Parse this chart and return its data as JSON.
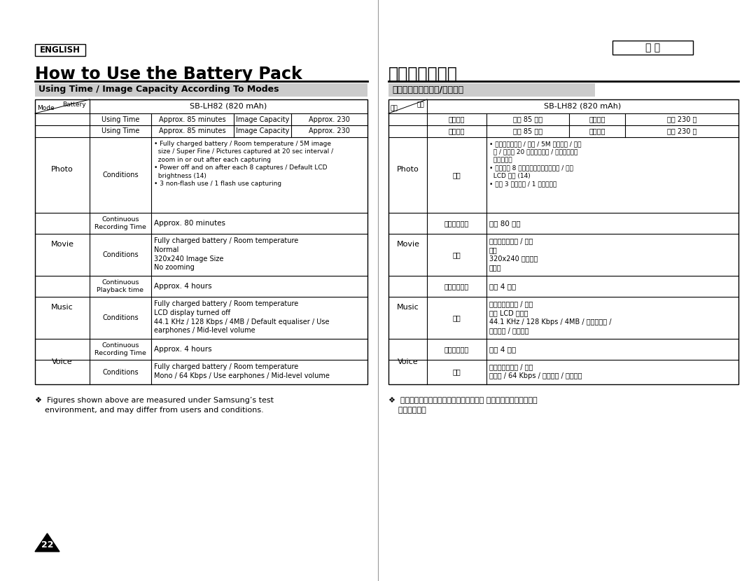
{
  "bg_color": "#ffffff",
  "english_label": "ENGLISH",
  "taiwan_label": "臺 灣",
  "title_en": "How to Use the Battery Pack",
  "title_zh": "如何使用電池組",
  "section_en": "Using Time / Image Capacity According To Modes",
  "section_zh": "根據模式的使用時間/影像容量",
  "battery_header_en": "SB-LH82 (820 mAh)",
  "battery_header_zh": "SB-LH82 (820 mAh)",
  "col_mode_en": "Mode",
  "col_battery_en": "Battery",
  "col_mode_zh": "模式",
  "col_battery_zh": "電池",
  "col_usingtime_en": "Using Time",
  "col_approx85_en": "Approx. 85 minutes",
  "col_imgcap_en": "Image Capacity",
  "col_approx230_en": "Approx. 230",
  "col_usingtime_zh": "使用時間",
  "col_approx85_zh": "大約 85 分鐘",
  "col_imgcap_zh": "影像容量",
  "col_approx230_zh": "大約 230 張",
  "photo_mode_en": "Photo",
  "photo_mode_zh": "Photo",
  "photo_conditions_en": "Conditions",
  "photo_conditions_zh": "條件",
  "photo_cond_text_en": "• Fully charged battery / Room temperature / 5M image\n  size / Super Fine / Pictures captured at 20 sec interval /\n  zoom in or out after each capturing\n• Power off and on after each 8 captures / Default LCD\n  brightness (14)\n• 3 non-flash use / 1 flash use capturing",
  "photo_cond_text_zh": "• 完全充電的電池 / 室溫 / 5M 影像大小 / 超精\n  細 / 相片以 20 秒的間隔拍攝 / 在每次拍攝後\n  放大或縮小\n• 在每拍攝 8 次之後關閉電源然後開啟 / 預設\n  LCD 亮度 (14)\n• 使用 3 次無閃光 / 1 次閃光拍攝",
  "movie_mode_en": "Movie",
  "movie_mode_zh": "Movie",
  "movie_cont_rec_en": "Continuous\nRecording Time",
  "movie_cont_rec_zh": "連續錄製時間",
  "movie_approx80_en": "Approx. 80 minutes",
  "movie_approx80_zh": "大約 80 分鐘",
  "movie_conditions_en": "Conditions",
  "movie_conditions_zh": "條件",
  "movie_cond_text_en": "Fully charged battery / Room temperature\nNormal\n320x240 Image Size\nNo zooming",
  "movie_cond_text_zh": "完全充電的電池 / 室溫\n正常\n320x240 影像大小\n無縮放",
  "music_mode_en": "Music",
  "music_mode_zh": "Music",
  "music_cont_play_en": "Continuous\nPlayback time",
  "music_cont_play_zh": "連續播放時間",
  "music_approx4h_en": "Approx. 4 hours",
  "music_approx4h_zh": "大約 4 小時",
  "music_conditions_en": "Conditions",
  "music_conditions_zh": "條件",
  "music_cond_text_en": "Fully charged battery / Room temperature\nLCD display turned off\n44.1 KHz / 128 Kbps / 4MB / Default equaliser / Use\nearphones / Mid-level volume",
  "music_cond_text_zh": "完全充電的電池 / 室溫\n關閉 LCD 顯示器\n44.1 KHz / 128 Kbps / 4MB / 預設等化器 /\n使用耳機 / 中等音量",
  "voice_mode_en": "Voice",
  "voice_mode_zh": "Voice",
  "voice_cont_rec_en": "Continuous\nRecording Time",
  "voice_cont_rec_zh": "連續錄製時間",
  "voice_approx4h_en": "Approx. 4 hours",
  "voice_approx4h_zh": "大約 4 小時",
  "voice_conditions_en": "Conditions",
  "voice_conditions_zh": "條件",
  "voice_cond_text_en": "Fully charged battery / Room temperature\nMono / 64 Kbps / Use earphones / Mid-level volume",
  "voice_cond_text_zh": "完全充電的電池 / 室溫\n單聲道 / 64 Kbps / 使用耳機 / 中等音量",
  "footnote_en": "❖  Figures shown above are measured under Samsung’s test\n    environment, and may differ from users and conditions.",
  "footnote_zh": "❖  上表顯示的數字在三星測試環境下測量， 可能會根據使用者與條件\n    的不同而真。",
  "page_number": "22"
}
